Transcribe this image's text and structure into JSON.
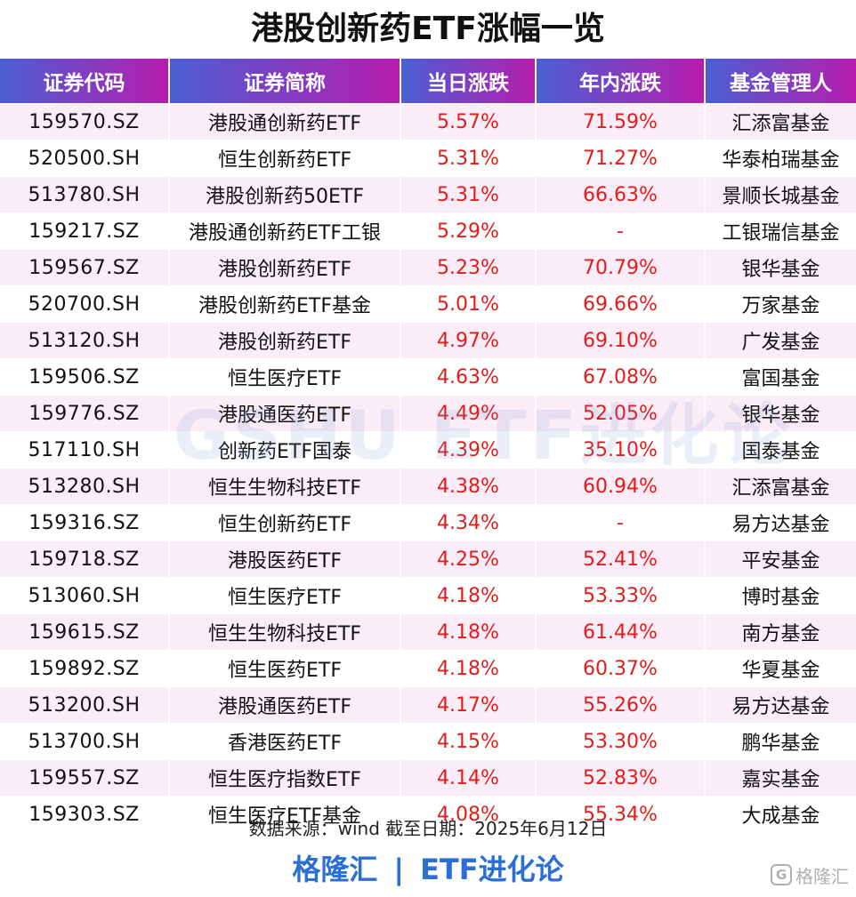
{
  "title": "港股创新药ETF涨幅一览",
  "table": {
    "headers": [
      "证券代码",
      "证券简称",
      "当日涨跌",
      "年内涨跌",
      "基金管理人"
    ],
    "rows": [
      [
        "159570.SZ",
        "港股通创新药ETF",
        "5.57%",
        "71.59%",
        "汇添富基金"
      ],
      [
        "520500.SH",
        "恒生创新药ETF",
        "5.31%",
        "71.27%",
        "华泰柏瑞基金"
      ],
      [
        "513780.SH",
        "港股创新药50ETF",
        "5.31%",
        "66.63%",
        "景顺长城基金"
      ],
      [
        "159217.SZ",
        "港股通创新药ETF工银",
        "5.29%",
        "-",
        "工银瑞信基金"
      ],
      [
        "159567.SZ",
        "港股创新药ETF",
        "5.23%",
        "70.79%",
        "银华基金"
      ],
      [
        "520700.SH",
        "港股创新药ETF基金",
        "5.01%",
        "69.66%",
        "万家基金"
      ],
      [
        "513120.SH",
        "港股创新药ETF",
        "4.97%",
        "69.10%",
        "广发基金"
      ],
      [
        "159506.SZ",
        "恒生医疗ETF",
        "4.63%",
        "67.08%",
        "富国基金"
      ],
      [
        "159776.SZ",
        "港股通医药ETF",
        "4.49%",
        "52.05%",
        "银华基金"
      ],
      [
        "517110.SH",
        "创新药ETF国泰",
        "4.39%",
        "35.10%",
        "国泰基金"
      ],
      [
        "513280.SH",
        "恒生生物科技ETF",
        "4.38%",
        "60.94%",
        "汇添富基金"
      ],
      [
        "159316.SZ",
        "恒生创新药ETF",
        "4.34%",
        "-",
        "易方达基金"
      ],
      [
        "159718.SZ",
        "港股医药ETF",
        "4.25%",
        "52.41%",
        "平安基金"
      ],
      [
        "513060.SH",
        "恒生医疗ETF",
        "4.18%",
        "53.33%",
        "博时基金"
      ],
      [
        "159615.SZ",
        "恒生生物科技ETF",
        "4.18%",
        "61.44%",
        "南方基金"
      ],
      [
        "159892.SZ",
        "恒生医药ETF",
        "4.18%",
        "60.37%",
        "华夏基金"
      ],
      [
        "513200.SH",
        "港股通医药ETF",
        "4.17%",
        "55.26%",
        "易方达基金"
      ],
      [
        "513700.SH",
        "香港医药ETF",
        "4.15%",
        "53.30%",
        "鹏华基金"
      ],
      [
        "159557.SZ",
        "恒生医疗指数ETF",
        "4.14%",
        "52.83%",
        "嘉实基金"
      ],
      [
        "159303.SZ",
        "恒生医疗ETF基金",
        "4.08%",
        "55.34%",
        "大成基金"
      ]
    ]
  },
  "watermark": "GSHU ETF进化论",
  "source": "数据来源：wind   截至日期：2025年6月12日",
  "brand": {
    "left": "格隆汇",
    "separator": "|",
    "right": "ETF进化论"
  },
  "logo": {
    "icon": "G",
    "text": "格隆汇"
  },
  "colors": {
    "header_gradient_start": "#4a5fd4",
    "header_gradient_end": "#b81cae",
    "stripe": "#fbedf7",
    "positive": "#e21b1b",
    "brand": "#2b6fd4"
  }
}
